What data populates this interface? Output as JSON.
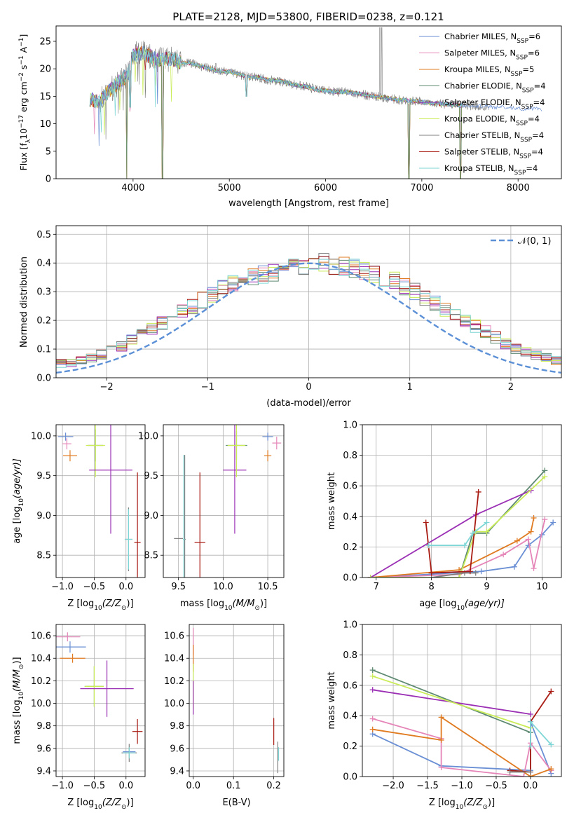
{
  "figure_title": "PLATE=2128, MJD=53800, FIBERID=0238, z=0.121",
  "colors": {
    "chabrier_miles": "#6a8fd4",
    "salpeter_miles": "#e585b8",
    "kroupa_miles": "#e07b22",
    "chabrier_elodie": "#5f8a72",
    "salpeter_elodie": "#9b30b5",
    "kroupa_elodie": "#c9ec57",
    "chabrier_stelib": "#7f7f7f",
    "salpeter_stelib": "#a81b12",
    "kroupa_stelib": "#7fd6d6",
    "grid": "#b0b0b0",
    "gaussian": "#5b8fd6"
  },
  "chart_data": [
    {
      "id": "spectrum",
      "type": "line",
      "xlabel": "wavelength [Angstrom, rest frame]",
      "ylabel": "Flux [f",
      "ylabel_sub": "λ",
      "ylabel_rest": "10",
      "ylabel_sup1": "−17",
      "ylabel_mid": " erg cm",
      "ylabel_sup2": "−2",
      "ylabel_mid2": " s",
      "ylabel_sup3": "−1",
      "ylabel_mid3": " A",
      "ylabel_sup4": "−1",
      "ylabel_end": "]",
      "xlim": [
        3200,
        8450
      ],
      "ylim": [
        0,
        27.8
      ],
      "grid": false,
      "legend_position": "top-right",
      "xticks": [
        4000,
        5000,
        6000,
        7000,
        8000
      ],
      "yticks": [
        0,
        5,
        10,
        15,
        20,
        25
      ],
      "series": [
        {
          "name": "Chabrier MILES, N",
          "sub": "SSP",
          "suffix": "=6",
          "color_key": "chabrier_miles"
        },
        {
          "name": "Salpeter MILES, N",
          "sub": "SSP",
          "suffix": "=6",
          "color_key": "salpeter_miles"
        },
        {
          "name": "Kroupa MILES, N",
          "sub": "SSP",
          "suffix": "=5",
          "color_key": "kroupa_miles"
        },
        {
          "name": "Chabrier ELODIE, N",
          "sub": "SSP",
          "suffix": "=4",
          "color_key": "chabrier_elodie"
        },
        {
          "name": "Salpeter ELODIE, N",
          "sub": "SSP",
          "suffix": "=4",
          "color_key": "salpeter_elodie"
        },
        {
          "name": "Kroupa ELODIE, N",
          "sub": "SSP",
          "suffix": "=4",
          "color_key": "kroupa_elodie"
        },
        {
          "name": "Chabrier STELIB, N",
          "sub": "SSP",
          "suffix": "=4",
          "color_key": "chabrier_stelib"
        },
        {
          "name": "Salpeter STELIB, N",
          "sub": "SSP",
          "suffix": "=4",
          "color_key": "salpeter_stelib"
        },
        {
          "name": "Kroupa STELIB, N",
          "sub": "SSP",
          "suffix": "=4",
          "color_key": "kroupa_stelib"
        }
      ],
      "continuum": [
        [
          3550,
          14.5
        ],
        [
          3650,
          14.0
        ],
        [
          3750,
          16.0
        ],
        [
          3850,
          17.5
        ],
        [
          3950,
          19.0
        ],
        [
          4000,
          22.5
        ],
        [
          4100,
          23.0
        ],
        [
          4200,
          22.0
        ],
        [
          4300,
          21.5
        ],
        [
          4400,
          22.0
        ],
        [
          4500,
          21.0
        ],
        [
          4600,
          21.0
        ],
        [
          4700,
          20.5
        ],
        [
          4800,
          20.0
        ],
        [
          4900,
          19.5
        ],
        [
          5000,
          19.5
        ],
        [
          5100,
          19.0
        ],
        [
          5200,
          18.5
        ],
        [
          5300,
          18.5
        ],
        [
          5400,
          18.0
        ],
        [
          5500,
          17.8
        ],
        [
          5600,
          17.5
        ],
        [
          5700,
          17.0
        ],
        [
          5800,
          16.8
        ],
        [
          5900,
          16.2
        ],
        [
          6000,
          16.0
        ],
        [
          6100,
          15.8
        ],
        [
          6200,
          15.8
        ],
        [
          6300,
          15.6
        ],
        [
          6400,
          15.3
        ],
        [
          6500,
          15.0
        ],
        [
          6600,
          14.8
        ],
        [
          6700,
          14.5
        ],
        [
          6800,
          14.3
        ],
        [
          6900,
          14.2
        ],
        [
          7000,
          14.0
        ],
        [
          7100,
          13.8
        ],
        [
          7200,
          13.6
        ],
        [
          7300,
          13.5
        ],
        [
          7420,
          13.3
        ]
      ],
      "gray_extent": [
        3650,
        7700
      ],
      "blue_extent": [
        3550,
        8250
      ],
      "emission_lines": [
        [
          6563,
          27.5
        ],
        [
          6583,
          27.5
        ],
        [
          4861,
          21.0
        ],
        [
          5007,
          19.8
        ]
      ],
      "absorption_lines": [
        [
          3934,
          0
        ],
        [
          3969,
          13.0
        ],
        [
          4305,
          0
        ],
        [
          5175,
          15.0
        ],
        [
          5890,
          16.0
        ],
        [
          6867,
          0
        ],
        [
          7400,
          0
        ]
      ]
    },
    {
      "id": "residuals",
      "type": "step-histogram",
      "xlabel": "(data-model)/error",
      "ylabel": "Normed distribution",
      "xlim": [
        -2.5,
        2.5
      ],
      "ylim": [
        0,
        0.53
      ],
      "grid": true,
      "xticks": [
        -2,
        -1,
        0,
        1,
        2
      ],
      "yticks": [
        0.0,
        0.1,
        0.2,
        0.3,
        0.4,
        0.5
      ],
      "legend_label": "𝒩(0, 1)",
      "legend_position": "top-right",
      "bin_width": 0.1,
      "base_values": [
        0.02,
        0.03,
        0.04,
        0.05,
        0.05,
        0.06,
        0.07,
        0.08,
        0.1,
        0.11,
        0.13,
        0.15,
        0.17,
        0.19,
        0.21,
        0.23,
        0.25,
        0.27,
        0.29,
        0.31,
        0.33,
        0.34,
        0.35,
        0.36,
        0.37,
        0.38,
        0.39,
        0.39,
        0.4,
        0.4,
        0.39,
        0.39,
        0.38,
        0.37,
        0.36,
        0.35,
        0.34,
        0.32,
        0.3,
        0.28,
        0.26,
        0.24,
        0.22,
        0.2,
        0.18,
        0.16,
        0.14,
        0.12,
        0.1,
        0.09,
        0.08,
        0.07,
        0.06,
        0.05,
        0.04,
        0.04
      ]
    },
    {
      "id": "age_vs_Z",
      "type": "errorbar",
      "xlabel": "Z [log",
      "xlabel_sub": "10",
      "xlabel_rest": "(Z/Z",
      "xlabel_sub2": "⊙",
      "xlabel_end": ")]",
      "ylabel": "age  [log",
      "ylabel_sub": "10",
      "ylabel_rest": "(age/yr)]",
      "xlim": [
        -1.1,
        0.3
      ],
      "ylim": [
        8.22,
        10.14
      ],
      "xticks": [
        -1.0,
        -0.5,
        0.0
      ],
      "yticks": [
        8.5,
        9.0,
        9.5,
        10.0
      ],
      "points": [
        {
          "c": "chabrier_miles",
          "x": -0.95,
          "xerr": 0.12,
          "y": 9.99,
          "yerr": 0.05
        },
        {
          "c": "salpeter_miles",
          "x": -0.93,
          "xerr": 0.07,
          "y": 9.9,
          "yerr": 0.07
        },
        {
          "c": "kroupa_miles",
          "x": -0.88,
          "xerr": 0.11,
          "y": 9.75,
          "yerr": 0.07
        },
        {
          "c": "chabrier_elodie",
          "x": -0.48,
          "xerr": 0.12,
          "y": 9.88,
          "yerr": 0.2
        },
        {
          "c": "kroupa_elodie",
          "x": -0.48,
          "xerr": 0.15,
          "y": 9.88,
          "yerr": 0.4
        },
        {
          "c": "salpeter_elodie",
          "x": -0.24,
          "xerr": 0.34,
          "y": 9.57,
          "yerr": 0.8
        },
        {
          "c": "chabrier_stelib",
          "x": 0.04,
          "xerr": 0.06,
          "y": 8.7,
          "yerr": 0.4
        },
        {
          "c": "kroupa_stelib",
          "x": 0.04,
          "xerr": 0.06,
          "y": 8.7,
          "yerr": 0.38
        },
        {
          "c": "salpeter_stelib",
          "x": 0.18,
          "xerr": 0.05,
          "y": 8.66,
          "yerr": 0.88
        }
      ]
    },
    {
      "id": "age_vs_mass",
      "type": "errorbar",
      "xlabel": "mass [log",
      "xlabel_sub": "10",
      "xlabel_rest": "(M/M",
      "xlabel_sub2": "⊙",
      "xlabel_end": ")]",
      "xlim": [
        9.33,
        10.68
      ],
      "ylim": [
        8.22,
        10.14
      ],
      "xticks": [
        9.5,
        10.0,
        10.5
      ],
      "yticks": [
        8.5,
        9.0,
        9.5,
        10.0
      ],
      "points": [
        {
          "c": "chabrier_stelib",
          "x": 9.57,
          "xerr": 0.01,
          "y": 8.7,
          "yerr": 1.06
        },
        {
          "c": "kroupa_stelib",
          "x": 9.56,
          "xerr": 0.01,
          "y": 8.7,
          "yerr": 1.06
        },
        {
          "c": "chabrier_stelib",
          "x": 9.5,
          "xerr": 0.05,
          "y": 8.71,
          "yerr": 0.0
        },
        {
          "c": "salpeter_stelib",
          "x": 9.74,
          "xerr": 0.06,
          "y": 8.66,
          "yerr": 0.88
        },
        {
          "c": "salpeter_elodie",
          "x": 10.13,
          "xerr": 0.13,
          "y": 9.57,
          "yerr": 0.8
        },
        {
          "c": "chabrier_elodie",
          "x": 10.15,
          "xerr": 0.12,
          "y": 9.88,
          "yerr": 0.18
        },
        {
          "c": "kroupa_elodie",
          "x": 10.15,
          "xerr": 0.1,
          "y": 9.88,
          "yerr": 0.4
        },
        {
          "c": "chabrier_miles",
          "x": 10.5,
          "xerr": 0.06,
          "y": 9.99,
          "yerr": 0.05
        },
        {
          "c": "kroupa_miles",
          "x": 10.5,
          "xerr": 0.04,
          "y": 9.75,
          "yerr": 0.07
        },
        {
          "c": "salpeter_miles",
          "x": 10.6,
          "xerr": 0.05,
          "y": 9.91,
          "yerr": 0.08
        }
      ]
    },
    {
      "id": "mass_weight_vs_age",
      "type": "line",
      "xlabel": "age  [log",
      "xlabel_sub": "10",
      "xlabel_rest": "(age/yr)]",
      "ylabel": "mass weight",
      "xlim": [
        6.75,
        10.35
      ],
      "ylim": [
        0.0,
        1.0
      ],
      "xticks": [
        7,
        8,
        9,
        10
      ],
      "yticks": [
        0.0,
        0.2,
        0.4,
        0.6,
        0.8,
        1.0
      ],
      "grid": true,
      "series": [
        {
          "c": "chabrier_miles",
          "x": [
            6.9,
            8.9,
            9.5,
            9.75,
            10.0,
            10.2
          ],
          "y": [
            0.0,
            0.04,
            0.07,
            0.21,
            0.28,
            0.36
          ]
        },
        {
          "c": "salpeter_miles",
          "x": [
            6.9,
            8.5,
            9.3,
            9.75,
            9.85,
            10.05
          ],
          "y": [
            0.0,
            0.02,
            0.15,
            0.25,
            0.06,
            0.38
          ]
        },
        {
          "c": "kroupa_miles",
          "x": [
            6.9,
            8.5,
            9.55,
            9.8,
            9.85
          ],
          "y": [
            0.0,
            0.05,
            0.24,
            0.3,
            0.39
          ]
        },
        {
          "c": "chabrier_elodie",
          "x": [
            6.9,
            8.5,
            8.75,
            9.0,
            10.05
          ],
          "y": [
            0.0,
            0.0,
            0.29,
            0.29,
            0.7
          ]
        },
        {
          "c": "salpeter_elodie",
          "x": [
            6.9,
            8.8,
            9.8
          ],
          "y": [
            0.0,
            0.41,
            0.57
          ]
        },
        {
          "c": "kroupa_elodie",
          "x": [
            6.9,
            8.5,
            8.8,
            9.0,
            10.05
          ],
          "y": [
            0.0,
            0.0,
            0.3,
            0.3,
            0.66
          ]
        },
        {
          "c": "chabrier_stelib",
          "x": [
            8.0,
            8.6,
            8.8
          ],
          "y": [
            0.0,
            0.03,
            0.03
          ]
        },
        {
          "c": "salpeter_stelib",
          "x": [
            7.9,
            8.0,
            8.7,
            8.85
          ],
          "y": [
            0.36,
            0.03,
            0.04,
            0.56
          ]
        },
        {
          "c": "kroupa_stelib",
          "x": [
            7.95,
            8.6,
            8.75,
            9.0
          ],
          "y": [
            0.21,
            0.21,
            0.29,
            0.36
          ]
        }
      ]
    },
    {
      "id": "mass_vs_Z",
      "type": "errorbar",
      "xlabel": "Z [log",
      "xlabel_sub": "10",
      "xlabel_rest": "(Z/Z",
      "xlabel_sub2": "⊙",
      "xlabel_end": ")]",
      "ylabel": "mass [log",
      "ylabel_sub": "10",
      "ylabel_rest": "(M/M",
      "ylabel_sub2": "⊙",
      "ylabel_end": ")]",
      "xlim": [
        -1.1,
        0.3
      ],
      "ylim": [
        9.35,
        10.7
      ],
      "xticks": [
        -1.0,
        -0.5,
        0.0
      ],
      "yticks": [
        9.4,
        9.6,
        9.8,
        10.0,
        10.2,
        10.4,
        10.6
      ],
      "points": [
        {
          "c": "salpeter_miles",
          "x": -0.92,
          "xerr": 0.2,
          "y": 10.59,
          "yerr": 0.04
        },
        {
          "c": "chabrier_miles",
          "x": -0.88,
          "xerr": 0.25,
          "y": 10.5,
          "yerr": 0.05
        },
        {
          "c": "kroupa_miles",
          "x": -0.84,
          "xerr": 0.2,
          "y": 10.4,
          "yerr": 0.04
        },
        {
          "c": "chabrier_elodie",
          "x": -0.5,
          "xerr": 0.15,
          "y": 10.15,
          "yerr": 0.18
        },
        {
          "c": "kroupa_elodie",
          "x": -0.5,
          "xerr": 0.15,
          "y": 10.15,
          "yerr": 0.18
        },
        {
          "c": "salpeter_elodie",
          "x": -0.3,
          "xerr": 0.42,
          "y": 10.13,
          "yerr": 0.25
        },
        {
          "c": "chabrier_miles",
          "x": 0.05,
          "xerr": 0.1,
          "y": 9.57,
          "yerr": 0.01
        },
        {
          "c": "chabrier_stelib",
          "x": 0.05,
          "xerr": 0.12,
          "y": 9.56,
          "yerr": 0.08
        },
        {
          "c": "kroupa_stelib",
          "x": 0.05,
          "xerr": 0.1,
          "y": 9.56,
          "yerr": 0.05
        },
        {
          "c": "salpeter_stelib",
          "x": 0.18,
          "xerr": 0.08,
          "y": 9.75,
          "yerr": 0.11
        }
      ]
    },
    {
      "id": "mass_vs_ebv",
      "type": "errorbar",
      "xlabel": "E(B-V)",
      "xlim": [
        -0.01,
        0.225
      ],
      "ylim": [
        9.35,
        10.7
      ],
      "xticks": [
        0.0,
        0.1,
        0.2
      ],
      "yticks": [
        9.4,
        9.6,
        9.8,
        10.0,
        10.2,
        10.4,
        10.6
      ],
      "points": [
        {
          "c": "salpeter_miles",
          "x": 0.0,
          "xerr": 0.0,
          "y": 10.55,
          "yerr": 0.12
        },
        {
          "c": "kroupa_miles",
          "x": 0.0,
          "xerr": 0.0,
          "y": 10.4,
          "yerr": 0.12
        },
        {
          "c": "kroupa_elodie",
          "x": 0.0,
          "xerr": 0.0,
          "y": 10.15,
          "yerr": 0.2
        },
        {
          "c": "salpeter_elodie",
          "x": 0.0,
          "xerr": 0.0,
          "y": 10.05,
          "yerr": 0.15
        },
        {
          "c": "salpeter_stelib",
          "x": 0.2,
          "xerr": 0.0,
          "y": 9.75,
          "yerr": 0.12
        },
        {
          "c": "chabrier_stelib",
          "x": 0.21,
          "xerr": 0.0,
          "y": 9.52,
          "yerr": 0.14
        },
        {
          "c": "kroupa_stelib",
          "x": 0.212,
          "xerr": 0.0,
          "y": 9.55,
          "yerr": 0.06
        }
      ]
    },
    {
      "id": "mass_weight_vs_Z",
      "type": "line",
      "xlabel": "Z [log",
      "xlabel_sub": "10",
      "xlabel_rest": "(Z/Z",
      "xlabel_sub2": "⊙",
      "xlabel_end": ")]",
      "ylabel": "mass weight",
      "xlim": [
        -2.45,
        0.45
      ],
      "ylim": [
        0.0,
        1.0
      ],
      "xticks": [
        -2.0,
        -1.5,
        -1.0,
        -0.5,
        0.0
      ],
      "yticks": [
        0.0,
        0.2,
        0.4,
        0.6,
        0.8,
        1.0
      ],
      "grid": true,
      "series": [
        {
          "c": "chabrier_miles",
          "x": [
            -2.3,
            -1.3,
            0.0,
            0.0,
            0.3
          ],
          "y": [
            0.28,
            0.07,
            0.04,
            0.36,
            0.02
          ]
        },
        {
          "c": "salpeter_miles",
          "x": [
            -2.3,
            -1.3,
            -1.3,
            -0.1,
            0.0,
            0.3
          ],
          "y": [
            0.38,
            0.25,
            0.06,
            0.0,
            0.22,
            0.04
          ]
        },
        {
          "c": "kroupa_miles",
          "x": [
            -2.3,
            -1.3,
            -1.3,
            0.0,
            0.3
          ],
          "y": [
            0.31,
            0.24,
            0.39,
            0.0,
            0.05
          ]
        },
        {
          "c": "chabrier_elodie",
          "x": [
            -2.3,
            0.0
          ],
          "y": [
            0.7,
            0.29
          ]
        },
        {
          "c": "salpeter_elodie",
          "x": [
            -2.3,
            0.0
          ],
          "y": [
            0.57,
            0.41
          ]
        },
        {
          "c": "kroupa_elodie",
          "x": [
            -2.3,
            0.0
          ],
          "y": [
            0.66,
            0.32
          ]
        },
        {
          "c": "salpeter_stelib",
          "x": [
            -0.3,
            0.0,
            0.0,
            0.3
          ],
          "y": [
            0.04,
            0.03,
            0.36,
            0.56
          ]
        },
        {
          "c": "chabrier_stelib",
          "x": [
            -0.3,
            0.0
          ],
          "y": [
            0.03,
            0.03
          ]
        },
        {
          "c": "kroupa_stelib",
          "x": [
            0.0,
            0.0,
            0.3
          ],
          "y": [
            0.2,
            0.36,
            0.21
          ]
        }
      ]
    }
  ]
}
